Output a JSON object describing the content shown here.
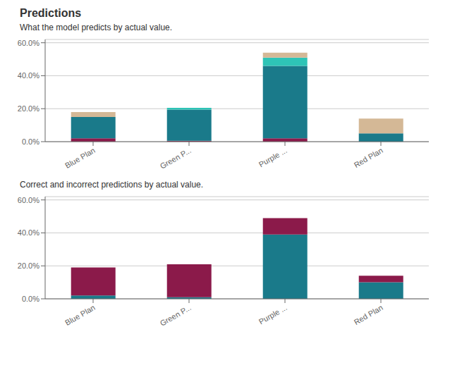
{
  "chart_data": [
    {
      "type": "bar",
      "title": "Predictions",
      "subtitle": "What the model predicts by actual value.",
      "categories": [
        "Blue Plan",
        "Green P...",
        "Purple ...",
        "Red Plan"
      ],
      "stacked": true,
      "grid": true,
      "series": [
        {
          "color": "#8B1A4A",
          "values": [
            0.02,
            0.005,
            0.02,
            0.0
          ]
        },
        {
          "color": "#1A7A8A",
          "values": [
            0.13,
            0.19,
            0.44,
            0.05
          ]
        },
        {
          "color": "#2EC4B6",
          "values": [
            0.0,
            0.01,
            0.05,
            0.0
          ]
        },
        {
          "color": "#D4B896",
          "values": [
            0.03,
            0.0,
            0.03,
            0.09
          ]
        }
      ],
      "ylim": [
        0.0,
        0.62
      ],
      "yticks": [
        {
          "value": 0.0,
          "label": "0.0%"
        },
        {
          "value": 0.2,
          "label": "20.0%"
        },
        {
          "value": 0.4,
          "label": "40.0%"
        },
        {
          "value": 0.6,
          "label": "60.0%"
        }
      ]
    },
    {
      "type": "bar",
      "subtitle": "Correct and incorrect predictions by actual value.",
      "categories": [
        "Blue Plan",
        "Green P...",
        "Purple ...",
        "Red Plan"
      ],
      "stacked": true,
      "grid": true,
      "series": [
        {
          "color": "#1A7A8A",
          "values": [
            0.02,
            0.01,
            0.39,
            0.1
          ]
        },
        {
          "color": "#8B1A4A",
          "values": [
            0.17,
            0.2,
            0.1,
            0.04
          ]
        }
      ],
      "ylim": [
        0.0,
        0.62
      ],
      "yticks": [
        {
          "value": 0.0,
          "label": "0.0%"
        },
        {
          "value": 0.2,
          "label": "20.0%"
        },
        {
          "value": 0.4,
          "label": "40.0%"
        },
        {
          "value": 0.6,
          "label": "60.0%"
        }
      ]
    }
  ]
}
